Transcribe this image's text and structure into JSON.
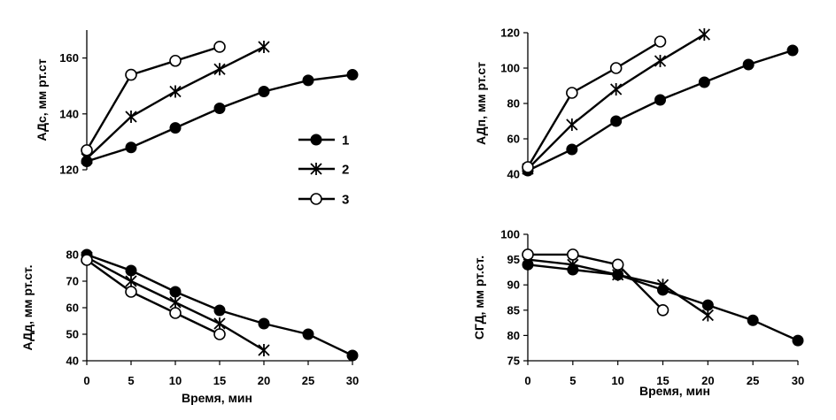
{
  "colors": {
    "ink": "#000000",
    "background": "#ffffff"
  },
  "legend": {
    "items": [
      {
        "label": "1",
        "marker": "filled-circle"
      },
      {
        "label": "2",
        "marker": "asterisk"
      },
      {
        "label": "3",
        "marker": "open-circle"
      }
    ]
  },
  "chart_data": [
    {
      "id": "ads",
      "type": "line",
      "ylabel": "АДс, мм рт.ст",
      "xlabel": "",
      "xlim": [
        0,
        30
      ],
      "ylim": [
        120,
        170
      ],
      "yticks": [
        120,
        140,
        160
      ],
      "xticks": [],
      "grid": false,
      "series": [
        {
          "name": "1",
          "marker": "filled-circle",
          "x": [
            0,
            5,
            10,
            15,
            20,
            25,
            30
          ],
          "y": [
            123,
            128,
            135,
            142,
            148,
            152,
            154
          ]
        },
        {
          "name": "2",
          "marker": "asterisk",
          "x": [
            0,
            5,
            10,
            15,
            20
          ],
          "y": [
            124,
            139,
            148,
            156,
            164
          ]
        },
        {
          "name": "3",
          "marker": "open-circle",
          "x": [
            0,
            5,
            10,
            15
          ],
          "y": [
            127,
            154,
            159,
            164
          ]
        }
      ]
    },
    {
      "id": "adp",
      "type": "line",
      "ylabel": "АДп, мм рт.ст",
      "xlabel": "",
      "xlim": [
        0,
        30
      ],
      "ylim": [
        40,
        120
      ],
      "yticks": [
        40,
        60,
        80,
        100,
        120
      ],
      "xticks": [],
      "grid": false,
      "series": [
        {
          "name": "1",
          "marker": "filled-circle",
          "x": [
            0,
            5,
            10,
            15,
            20,
            25,
            30
          ],
          "y": [
            42,
            54,
            70,
            82,
            92,
            102,
            110
          ]
        },
        {
          "name": "2",
          "marker": "asterisk",
          "x": [
            0,
            5,
            10,
            15,
            20
          ],
          "y": [
            43,
            68,
            88,
            104,
            119
          ]
        },
        {
          "name": "3",
          "marker": "open-circle",
          "x": [
            0,
            5,
            10,
            15
          ],
          "y": [
            44,
            86,
            100,
            115
          ]
        }
      ]
    },
    {
      "id": "add",
      "type": "line",
      "ylabel": "АДд, мм рт.ст.",
      "xlabel": "Время, мин",
      "xlim": [
        0,
        30
      ],
      "ylim": [
        40,
        80
      ],
      "yticks": [
        40,
        50,
        60,
        70,
        80
      ],
      "xticks": [
        0,
        5,
        10,
        15,
        20,
        25,
        30
      ],
      "grid": false,
      "series": [
        {
          "name": "1",
          "marker": "filled-circle",
          "x": [
            0,
            5,
            10,
            15,
            20,
            25,
            30
          ],
          "y": [
            80,
            74,
            66,
            59,
            54,
            50,
            42
          ]
        },
        {
          "name": "2",
          "marker": "asterisk",
          "x": [
            0,
            5,
            10,
            15,
            20
          ],
          "y": [
            79,
            70,
            62,
            54,
            44
          ]
        },
        {
          "name": "3",
          "marker": "open-circle",
          "x": [
            0,
            5,
            10,
            15
          ],
          "y": [
            78,
            66,
            58,
            50
          ]
        }
      ]
    },
    {
      "id": "sgd",
      "type": "line",
      "ylabel": "СГД, мм рт.ст.",
      "xlabel": "Время, мин",
      "xlim": [
        0,
        30
      ],
      "ylim": [
        75,
        100
      ],
      "yticks": [
        75,
        80,
        85,
        90,
        95,
        100
      ],
      "xticks": [
        0,
        5,
        10,
        15,
        20,
        25,
        30
      ],
      "grid": false,
      "series": [
        {
          "name": "1",
          "marker": "filled-circle",
          "x": [
            0,
            5,
            10,
            15,
            20,
            25,
            30
          ],
          "y": [
            94,
            93,
            92,
            89,
            86,
            83,
            79
          ]
        },
        {
          "name": "2",
          "marker": "asterisk",
          "x": [
            0,
            5,
            10,
            15,
            20
          ],
          "y": [
            95,
            94,
            92,
            90,
            84
          ]
        },
        {
          "name": "3",
          "marker": "open-circle",
          "x": [
            0,
            5,
            10,
            15
          ],
          "y": [
            96,
            96,
            94,
            85
          ]
        }
      ]
    }
  ]
}
